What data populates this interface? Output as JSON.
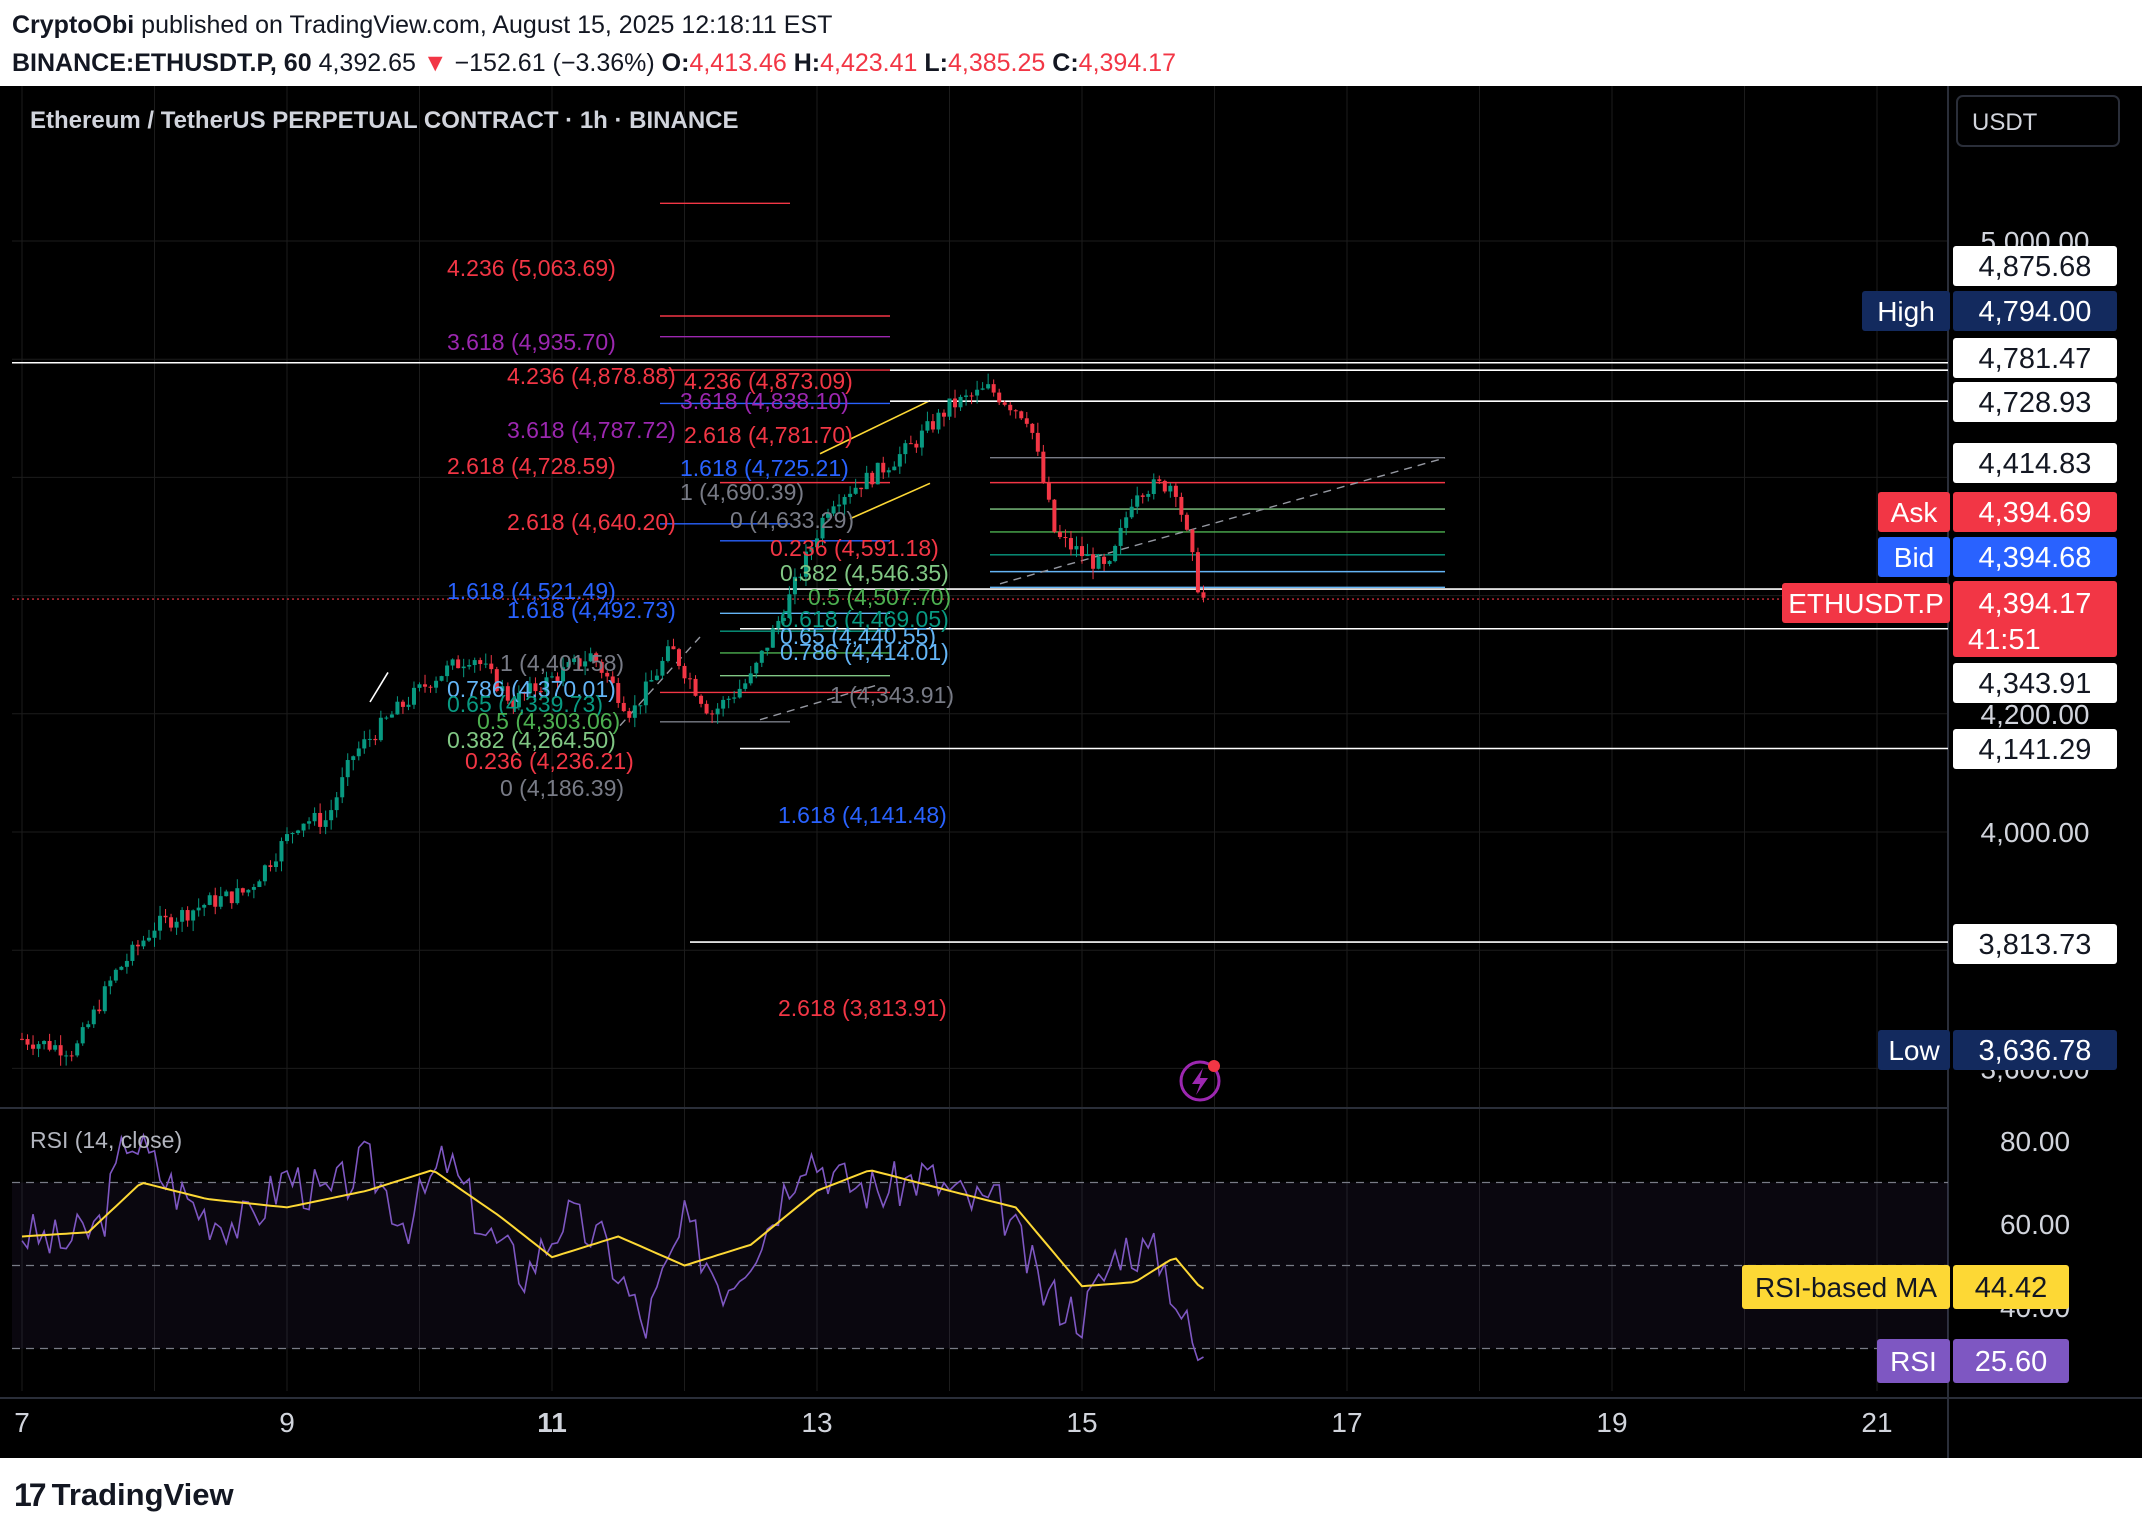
{
  "header": {
    "author": "CryptoObi",
    "published_text": "published on TradingView.com, August 15, 2025 12:18:11 EST",
    "symbol": "BINANCE:ETHUSDT.P, 60",
    "last": "4,392.65",
    "arrow": "▼",
    "change": "−152.61 (−3.36%)",
    "o_label": "O:",
    "o": "4,413.46",
    "h_label": "H:",
    "h": "4,423.41",
    "l_label": "L:",
    "l": "4,385.25",
    "c_label": "C:",
    "c": "4,394.17"
  },
  "chart": {
    "instrument_title": "Ethereum / TetherUS PERPETUAL CONTRACT · 1h · BINANCE",
    "currency_button": "USDT",
    "indicator_label": "RSI (14, close)",
    "colors": {
      "background": "#000000",
      "up": "#089981",
      "down": "#f23645",
      "rsi": "#7e57c2",
      "rsi_ma": "#fdd835",
      "grid": "#1c1c1c"
    }
  },
  "price_axis": {
    "ticks": [
      "5,000.00",
      "4,200.00",
      "4,000.00",
      "3,600.00"
    ],
    "labels": [
      {
        "value": "4,875.68",
        "tag": "",
        "style": "white"
      },
      {
        "value": "4,794.00",
        "tag": "High",
        "style": "navy"
      },
      {
        "value": "4,781.47",
        "tag": "",
        "style": "white"
      },
      {
        "value": "4,728.93",
        "tag": "",
        "style": "white"
      },
      {
        "value": "4,414.83",
        "tag": "",
        "style": "white"
      },
      {
        "value": "4,394.69",
        "tag": "Ask",
        "style": "red"
      },
      {
        "value": "4,394.68",
        "tag": "Bid",
        "style": "blue"
      },
      {
        "value": "4,394.17",
        "tag": "ETHUSDT.P",
        "style": "red",
        "sub": "41:51"
      },
      {
        "value": "4,343.91",
        "tag": "",
        "style": "white"
      },
      {
        "value": "4,141.29",
        "tag": "",
        "style": "white"
      },
      {
        "value": "3,813.73",
        "tag": "",
        "style": "white"
      },
      {
        "value": "3,636.78",
        "tag": "Low",
        "style": "navy"
      }
    ]
  },
  "rsi_axis": {
    "ticks": [
      "80.00",
      "60.00",
      "40.00"
    ],
    "labels": [
      {
        "value": "44.42",
        "tag": "RSI-based MA",
        "style": "yellow"
      },
      {
        "value": "25.60",
        "tag": "RSI",
        "style": "purple"
      }
    ]
  },
  "fib_labels": [
    {
      "text": "4.236 (5,063.69)",
      "color": "#f23645"
    },
    {
      "text": "3.618 (4,935.70)",
      "color": "#9c27b0"
    },
    {
      "text": "4.236 (4,878.88)",
      "color": "#f23645"
    },
    {
      "text": "4.236 (4,873.09)",
      "color": "#f23645"
    },
    {
      "text": "3.618 (4,838.10)",
      "color": "#9c27b0"
    },
    {
      "text": "3.618 (4,787.72)",
      "color": "#9c27b0"
    },
    {
      "text": "2.618 (4,781.70)",
      "color": "#f23645"
    },
    {
      "text": "2.618 (4,728.59)",
      "color": "#f23645"
    },
    {
      "text": "1.618 (4,725.21)",
      "color": "#2962ff"
    },
    {
      "text": "1 (4,690.39)",
      "color": "#787b86"
    },
    {
      "text": "0 (4,633.29)",
      "color": "#787b86"
    },
    {
      "text": "2.618 (4,640.20)",
      "color": "#f23645"
    },
    {
      "text": "0.236 (4,591.18)",
      "color": "#f23645"
    },
    {
      "text": "0.382 (4,546.35)",
      "color": "#81c784"
    },
    {
      "text": "1.618 (4,521.49)",
      "color": "#2962ff"
    },
    {
      "text": "0.5 (4,507.70)",
      "color": "#4caf50"
    },
    {
      "text": "1.618 (4,492.73)",
      "color": "#2962ff"
    },
    {
      "text": "0.618 (4,469.05)",
      "color": "#089981"
    },
    {
      "text": "0.65 (4,440.55)",
      "color": "#64b5f6"
    },
    {
      "text": "0.786 (4,414.01)",
      "color": "#64b5f6"
    },
    {
      "text": "1 (4,401.58)",
      "color": "#787b86"
    },
    {
      "text": "1 (4,343.91)",
      "color": "#787b86"
    },
    {
      "text": "0.786 (4,370.01)",
      "color": "#64b5f6"
    },
    {
      "text": "0.65 (4,339.73)",
      "color": "#089981"
    },
    {
      "text": "0.5 (4,303.06)",
      "color": "#4caf50"
    },
    {
      "text": "0.382 (4,264.50)",
      "color": "#81c784"
    },
    {
      "text": "0.236 (4,236.21)",
      "color": "#f23645"
    },
    {
      "text": "0 (4,186.39)",
      "color": "#787b86"
    },
    {
      "text": "1.618 (4,141.48)",
      "color": "#2962ff"
    },
    {
      "text": "2.618 (3,813.91)",
      "color": "#f23645"
    }
  ],
  "chart_data": {
    "type": "candlestick",
    "instrument": "ETHUSDT.P",
    "interval": "1h",
    "x_ticks": [
      "7",
      "9",
      "11",
      "13",
      "15",
      "17",
      "19",
      "21"
    ],
    "x_ticks_bold": [
      "11"
    ],
    "price_range": [
      3550,
      5150
    ],
    "price_series_close_keypoints": [
      {
        "day": 7.0,
        "price": 3650
      },
      {
        "day": 7.4,
        "price": 3630
      },
      {
        "day": 7.7,
        "price": 3760
      },
      {
        "day": 8.0,
        "price": 3840
      },
      {
        "day": 8.4,
        "price": 3880
      },
      {
        "day": 8.7,
        "price": 3900
      },
      {
        "day": 8.9,
        "price": 3960
      },
      {
        "day": 9.1,
        "price": 4020
      },
      {
        "day": 9.3,
        "price": 4020
      },
      {
        "day": 9.5,
        "price": 4130
      },
      {
        "day": 9.8,
        "price": 4200
      },
      {
        "day": 10.1,
        "price": 4260
      },
      {
        "day": 10.4,
        "price": 4300
      },
      {
        "day": 10.7,
        "price": 4220
      },
      {
        "day": 11.0,
        "price": 4260
      },
      {
        "day": 11.3,
        "price": 4300
      },
      {
        "day": 11.6,
        "price": 4200
      },
      {
        "day": 11.9,
        "price": 4310
      },
      {
        "day": 12.2,
        "price": 4200
      },
      {
        "day": 12.5,
        "price": 4260
      },
      {
        "day": 12.8,
        "price": 4400
      },
      {
        "day": 13.1,
        "price": 4560
      },
      {
        "day": 13.4,
        "price": 4600
      },
      {
        "day": 13.7,
        "price": 4650
      },
      {
        "day": 14.0,
        "price": 4720
      },
      {
        "day": 14.3,
        "price": 4750
      },
      {
        "day": 14.6,
        "price": 4700
      },
      {
        "day": 14.8,
        "price": 4500
      },
      {
        "day": 15.0,
        "price": 4470
      },
      {
        "day": 15.2,
        "price": 4440
      },
      {
        "day": 15.4,
        "price": 4580
      },
      {
        "day": 15.7,
        "price": 4590
      },
      {
        "day": 15.9,
        "price": 4394
      }
    ],
    "rsi_range": [
      20,
      90
    ],
    "rsi_keypoints": [
      {
        "day": 7.0,
        "rsi": 58
      },
      {
        "day": 7.3,
        "rsi": 55
      },
      {
        "day": 7.6,
        "rsi": 60
      },
      {
        "day": 7.8,
        "rsi": 82
      },
      {
        "day": 8.1,
        "rsi": 70
      },
      {
        "day": 8.4,
        "rsi": 62
      },
      {
        "day": 8.7,
        "rsi": 60
      },
      {
        "day": 9.0,
        "rsi": 72
      },
      {
        "day": 9.3,
        "rsi": 66
      },
      {
        "day": 9.6,
        "rsi": 75
      },
      {
        "day": 9.9,
        "rsi": 60
      },
      {
        "day": 10.2,
        "rsi": 76
      },
      {
        "day": 10.5,
        "rsi": 58
      },
      {
        "day": 10.8,
        "rsi": 48
      },
      {
        "day": 11.1,
        "rsi": 62
      },
      {
        "day": 11.4,
        "rsi": 55
      },
      {
        "day": 11.7,
        "rsi": 35
      },
      {
        "day": 12.0,
        "rsi": 60
      },
      {
        "day": 12.3,
        "rsi": 45
      },
      {
        "day": 12.6,
        "rsi": 58
      },
      {
        "day": 12.9,
        "rsi": 78
      },
      {
        "day": 13.2,
        "rsi": 70
      },
      {
        "day": 13.5,
        "rsi": 68
      },
      {
        "day": 13.8,
        "rsi": 72
      },
      {
        "day": 14.1,
        "rsi": 66
      },
      {
        "day": 14.4,
        "rsi": 64
      },
      {
        "day": 14.7,
        "rsi": 44
      },
      {
        "day": 15.0,
        "rsi": 38
      },
      {
        "day": 15.3,
        "rsi": 55
      },
      {
        "day": 15.6,
        "rsi": 52
      },
      {
        "day": 15.9,
        "rsi": 25.6
      }
    ],
    "rsi_ma_keypoints": [
      {
        "day": 7.0,
        "rsi": 57
      },
      {
        "day": 7.5,
        "rsi": 58
      },
      {
        "day": 7.9,
        "rsi": 70
      },
      {
        "day": 8.4,
        "rsi": 66
      },
      {
        "day": 9.0,
        "rsi": 64
      },
      {
        "day": 9.6,
        "rsi": 68
      },
      {
        "day": 10.1,
        "rsi": 73
      },
      {
        "day": 10.6,
        "rsi": 62
      },
      {
        "day": 11.0,
        "rsi": 52
      },
      {
        "day": 11.5,
        "rsi": 57
      },
      {
        "day": 12.0,
        "rsi": 50
      },
      {
        "day": 12.5,
        "rsi": 55
      },
      {
        "day": 13.0,
        "rsi": 68
      },
      {
        "day": 13.4,
        "rsi": 73
      },
      {
        "day": 14.0,
        "rsi": 68
      },
      {
        "day": 14.5,
        "rsi": 64
      },
      {
        "day": 15.0,
        "rsi": 45
      },
      {
        "day": 15.4,
        "rsi": 46
      },
      {
        "day": 15.7,
        "rsi": 52
      },
      {
        "day": 15.9,
        "rsi": 44.42
      }
    ],
    "rsi_bands": [
      70,
      50,
      30
    ]
  }
}
